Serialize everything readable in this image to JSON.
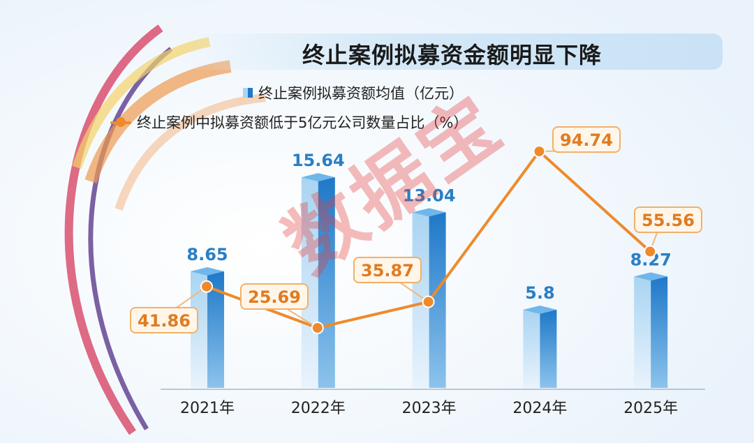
{
  "watermark": "数据宝",
  "colors": {
    "bar_front": "#a9d4f2",
    "bar_side": "#1f78c8",
    "bar_top": "#6fb6ea",
    "line": "#ee8a2c",
    "label_bar": "#2a7fc4",
    "label_line": "#e07b22",
    "label_box": "#fff6e9"
  },
  "chart_data": {
    "type": "bar+line",
    "title": "终止案例拟募资金额明显下降",
    "categories": [
      "2021年",
      "2022年",
      "2023年",
      "2024年",
      "2025年"
    ],
    "series": [
      {
        "name": "终止案例拟募资额均值（亿元）",
        "type": "bar",
        "values": [
          8.65,
          15.64,
          13.04,
          5.8,
          8.27
        ],
        "labels": [
          "8.65",
          "15.64",
          "13.04",
          "5.8",
          "8.27"
        ]
      },
      {
        "name": "终止案例中拟募资额低于5亿元公司数量占比（%）",
        "type": "line",
        "values": [
          41.86,
          25.69,
          35.87,
          94.74,
          55.56
        ],
        "labels": [
          "41.86",
          "25.69",
          "35.87",
          "94.74",
          "55.56"
        ]
      }
    ],
    "legend_position": "top",
    "grid": false
  }
}
